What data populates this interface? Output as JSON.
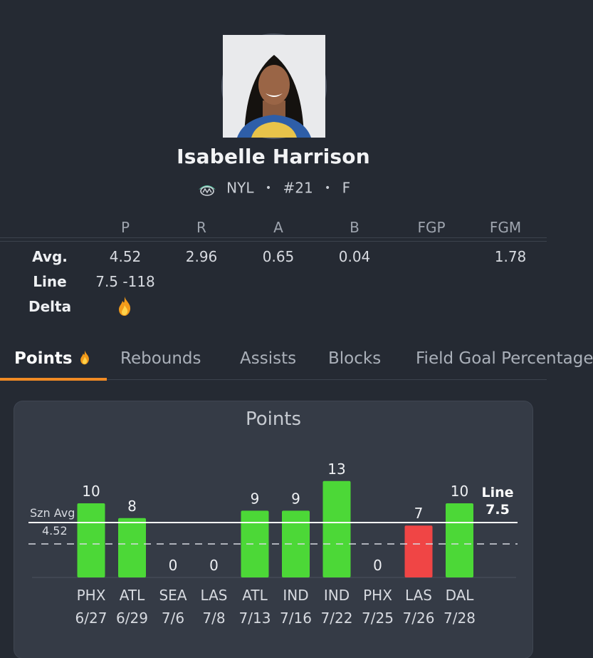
{
  "player": {
    "name": "Isabelle Harrison",
    "team": "NYL",
    "number": "#21",
    "position": "F",
    "separator": "•"
  },
  "stats": {
    "headers": [
      "P",
      "R",
      "A",
      "B",
      "FGP",
      "FGM"
    ],
    "rows": {
      "avg": {
        "label": "Avg.",
        "values": [
          "4.52",
          "2.96",
          "0.65",
          "0.04",
          "",
          "1.78"
        ]
      },
      "line": {
        "label": "Line",
        "value": "7.5 -118"
      },
      "delta": {
        "label": "Delta",
        "icon": "fire-icon"
      }
    }
  },
  "tabs": [
    {
      "label": "Points",
      "icon": "fire-icon",
      "active": true
    },
    {
      "label": "Rebounds"
    },
    {
      "label": "Assists"
    },
    {
      "label": "Blocks"
    },
    {
      "label": "Field Goal Percentage"
    }
  ],
  "colors": {
    "background": "#252a33",
    "card": "#353b46",
    "over": "#4cd837",
    "under": "#f04545",
    "accent": "#f08a24"
  },
  "chart_data": {
    "type": "bar",
    "title": "Points",
    "categories": [
      "PHX",
      "ATL",
      "SEA",
      "LAS",
      "ATL",
      "IND",
      "IND",
      "PHX",
      "LAS",
      "DAL"
    ],
    "dates": [
      "6/27",
      "6/29",
      "7/6",
      "7/8",
      "7/13",
      "7/16",
      "7/22",
      "7/25",
      "7/26",
      "7/28"
    ],
    "values": [
      10,
      8,
      0,
      0,
      9,
      9,
      13,
      0,
      7,
      10
    ],
    "line": {
      "label": "Line",
      "value": 7.5
    },
    "season_avg": {
      "label": "Szn Avg",
      "value": 4.52
    },
    "ylim": [
      0,
      13
    ]
  }
}
